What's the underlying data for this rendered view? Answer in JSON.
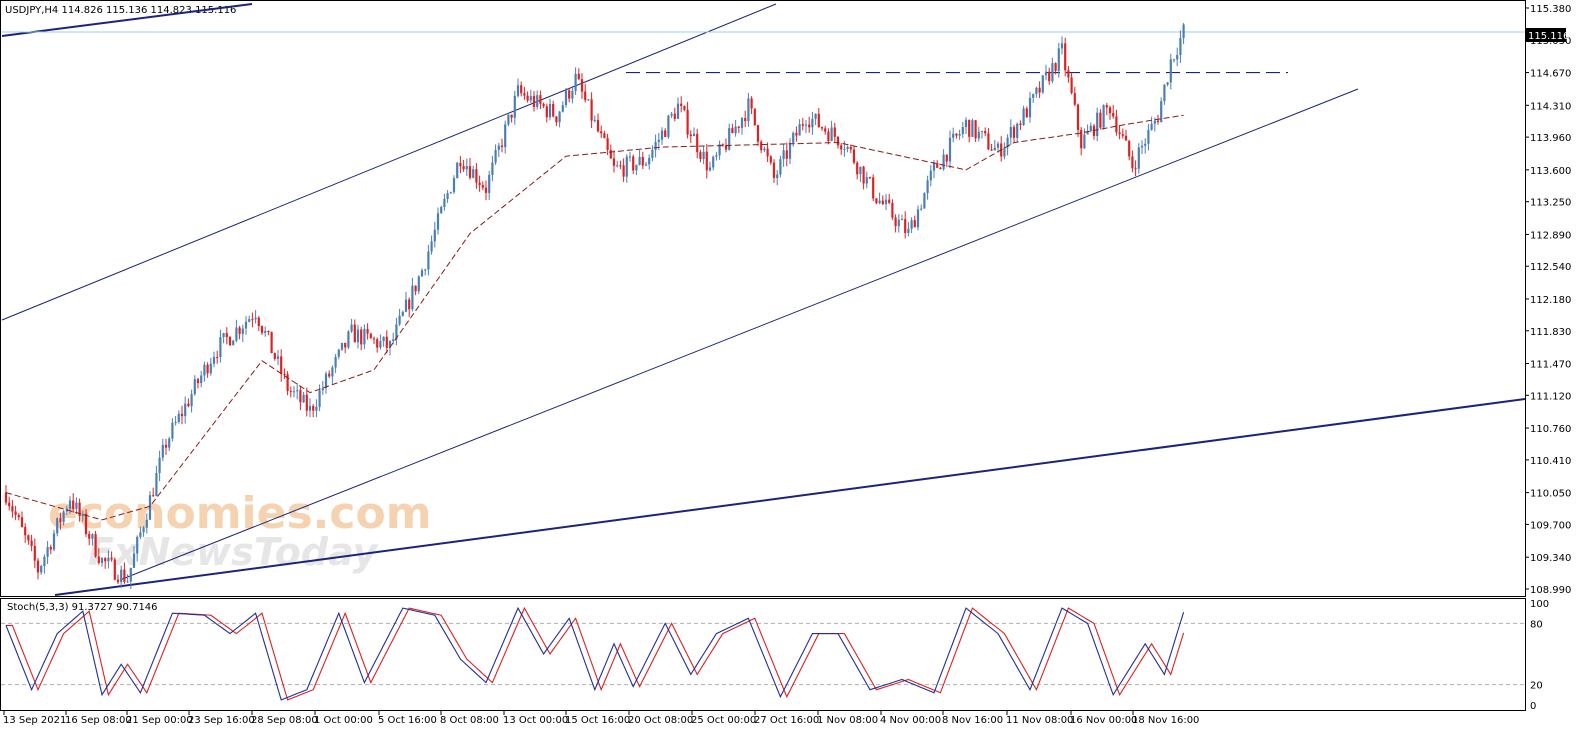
{
  "header": {
    "symbol_line": "USDJPY,H4  114.826 115.136 114.823 115.116",
    "stoch_line": "Stoch(5,3,3) 91.3727 90.7146"
  },
  "watermark": {
    "line1": "economies.com",
    "line2": "FxNewsToday"
  },
  "current_price_label": "115.116",
  "colors": {
    "background": "#ffffff",
    "frame": "#000000",
    "bull_candle": "#4a7fb5",
    "bear_candle": "#e02020",
    "moving_average": "#8b1a1a",
    "trend_line": "#1a237e",
    "horizontal_level": "#1a237e",
    "current_price_line": "#9ad0e8",
    "stoch_main": "#1f2e9c",
    "stoch_signal": "#e02020",
    "watermark": "#f5d2b0",
    "grid_text": "#000000"
  },
  "chart_data": [
    {
      "type": "candlestick",
      "title": "USDJPY,H4",
      "price_axis_ticks": [
        "115.380",
        "115.030",
        "114.670",
        "114.310",
        "113.960",
        "113.600",
        "113.250",
        "112.890",
        "112.540",
        "112.180",
        "111.830",
        "111.470",
        "111.120",
        "110.760",
        "110.410",
        "110.050",
        "109.700",
        "109.340",
        "108.990"
      ],
      "time_axis_ticks": [
        "13 Sep 2021",
        "16 Sep 08:00",
        "21 Sep 00:00",
        "23 Sep 16:00",
        "28 Sep 08:00",
        "1 Oct 00:00",
        "5 Oct 16:00",
        "8 Oct 08:00",
        "13 Oct 00:00",
        "15 Oct 16:00",
        "20 Oct 08:00",
        "25 Oct 00:00",
        "27 Oct 16:00",
        "1 Nov 08:00",
        "4 Nov 00:00",
        "8 Nov 16:00",
        "11 Nov 08:00",
        "16 Nov 00:00",
        "18 Nov 16:00"
      ],
      "ylim": [
        108.99,
        115.38
      ],
      "key_points": [
        {
          "index": 0,
          "price": 110.05
        },
        {
          "index": 10,
          "price": 109.2
        },
        {
          "index": 20,
          "price": 110.0
        },
        {
          "index": 30,
          "price": 109.3
        },
        {
          "index": 38,
          "price": 109.1
        },
        {
          "index": 50,
          "price": 110.6
        },
        {
          "index": 65,
          "price": 111.6
        },
        {
          "index": 78,
          "price": 112.05
        },
        {
          "index": 88,
          "price": 111.2
        },
        {
          "index": 95,
          "price": 110.95
        },
        {
          "index": 108,
          "price": 111.8
        },
        {
          "index": 120,
          "price": 111.65
        },
        {
          "index": 130,
          "price": 112.5
        },
        {
          "index": 142,
          "price": 113.75
        },
        {
          "index": 150,
          "price": 113.4
        },
        {
          "index": 160,
          "price": 114.45
        },
        {
          "index": 172,
          "price": 114.2
        },
        {
          "index": 178,
          "price": 114.6
        },
        {
          "index": 190,
          "price": 113.6
        },
        {
          "index": 200,
          "price": 113.7
        },
        {
          "index": 210,
          "price": 114.3
        },
        {
          "index": 220,
          "price": 113.6
        },
        {
          "index": 232,
          "price": 114.3
        },
        {
          "index": 240,
          "price": 113.5
        },
        {
          "index": 250,
          "price": 114.2
        },
        {
          "index": 262,
          "price": 113.9
        },
        {
          "index": 272,
          "price": 113.3
        },
        {
          "index": 282,
          "price": 112.9
        },
        {
          "index": 290,
          "price": 113.6
        },
        {
          "index": 300,
          "price": 114.1
        },
        {
          "index": 310,
          "price": 113.8
        },
        {
          "index": 320,
          "price": 114.3
        },
        {
          "index": 330,
          "price": 114.9
        },
        {
          "index": 336,
          "price": 113.9
        },
        {
          "index": 345,
          "price": 114.3
        },
        {
          "index": 352,
          "price": 113.65
        },
        {
          "index": 360,
          "price": 114.2
        },
        {
          "index": 364,
          "price": 114.8
        },
        {
          "index": 368,
          "price": 115.12
        }
      ],
      "moving_average": [
        {
          "index": 0,
          "price": 110.05
        },
        {
          "index": 30,
          "price": 109.75
        },
        {
          "index": 45,
          "price": 109.9
        },
        {
          "index": 80,
          "price": 111.5
        },
        {
          "index": 95,
          "price": 111.15
        },
        {
          "index": 115,
          "price": 111.4
        },
        {
          "index": 145,
          "price": 112.9
        },
        {
          "index": 175,
          "price": 113.75
        },
        {
          "index": 205,
          "price": 113.85
        },
        {
          "index": 260,
          "price": 113.9
        },
        {
          "index": 300,
          "price": 113.6
        },
        {
          "index": 315,
          "price": 113.9
        },
        {
          "index": 335,
          "price": 114.0
        },
        {
          "index": 350,
          "price": 114.1
        },
        {
          "index": 368,
          "price": 114.2
        }
      ],
      "levels": [
        {
          "name": "horizontal-resistance",
          "price": 114.67,
          "style": "dashed"
        },
        {
          "name": "current-price",
          "price": 115.116,
          "style": "solid"
        }
      ]
    },
    {
      "type": "line",
      "title": "Stoch(5,3,3) 91.3727 90.7146",
      "ylim": [
        0,
        100
      ],
      "ticks": [
        "100",
        "80",
        "20",
        "0"
      ],
      "main_key_points": [
        {
          "index": 0,
          "price": 78
        },
        {
          "index": 8,
          "price": 15
        },
        {
          "index": 16,
          "price": 70
        },
        {
          "index": 24,
          "price": 92
        },
        {
          "index": 30,
          "price": 10
        },
        {
          "index": 36,
          "price": 40
        },
        {
          "index": 42,
          "price": 12
        },
        {
          "index": 52,
          "price": 90
        },
        {
          "index": 62,
          "price": 88
        },
        {
          "index": 70,
          "price": 70
        },
        {
          "index": 78,
          "price": 90
        },
        {
          "index": 86,
          "price": 5
        },
        {
          "index": 94,
          "price": 15
        },
        {
          "index": 104,
          "price": 90
        },
        {
          "index": 112,
          "price": 22
        },
        {
          "index": 124,
          "price": 95
        },
        {
          "index": 134,
          "price": 88
        },
        {
          "index": 142,
          "price": 45
        },
        {
          "index": 150,
          "price": 22
        },
        {
          "index": 160,
          "price": 95
        },
        {
          "index": 168,
          "price": 50
        },
        {
          "index": 176,
          "price": 85
        },
        {
          "index": 184,
          "price": 15
        },
        {
          "index": 190,
          "price": 60
        },
        {
          "index": 196,
          "price": 18
        },
        {
          "index": 206,
          "price": 80
        },
        {
          "index": 214,
          "price": 30
        },
        {
          "index": 222,
          "price": 70
        },
        {
          "index": 232,
          "price": 85
        },
        {
          "index": 242,
          "price": 8
        },
        {
          "index": 252,
          "price": 70
        },
        {
          "index": 260,
          "price": 70
        },
        {
          "index": 270,
          "price": 15
        },
        {
          "index": 280,
          "price": 25
        },
        {
          "index": 290,
          "price": 12
        },
        {
          "index": 300,
          "price": 95
        },
        {
          "index": 310,
          "price": 70
        },
        {
          "index": 320,
          "price": 15
        },
        {
          "index": 330,
          "price": 95
        },
        {
          "index": 338,
          "price": 80
        },
        {
          "index": 346,
          "price": 10
        },
        {
          "index": 356,
          "price": 60
        },
        {
          "index": 362,
          "price": 30
        },
        {
          "index": 368,
          "price": 91
        }
      ]
    }
  ]
}
